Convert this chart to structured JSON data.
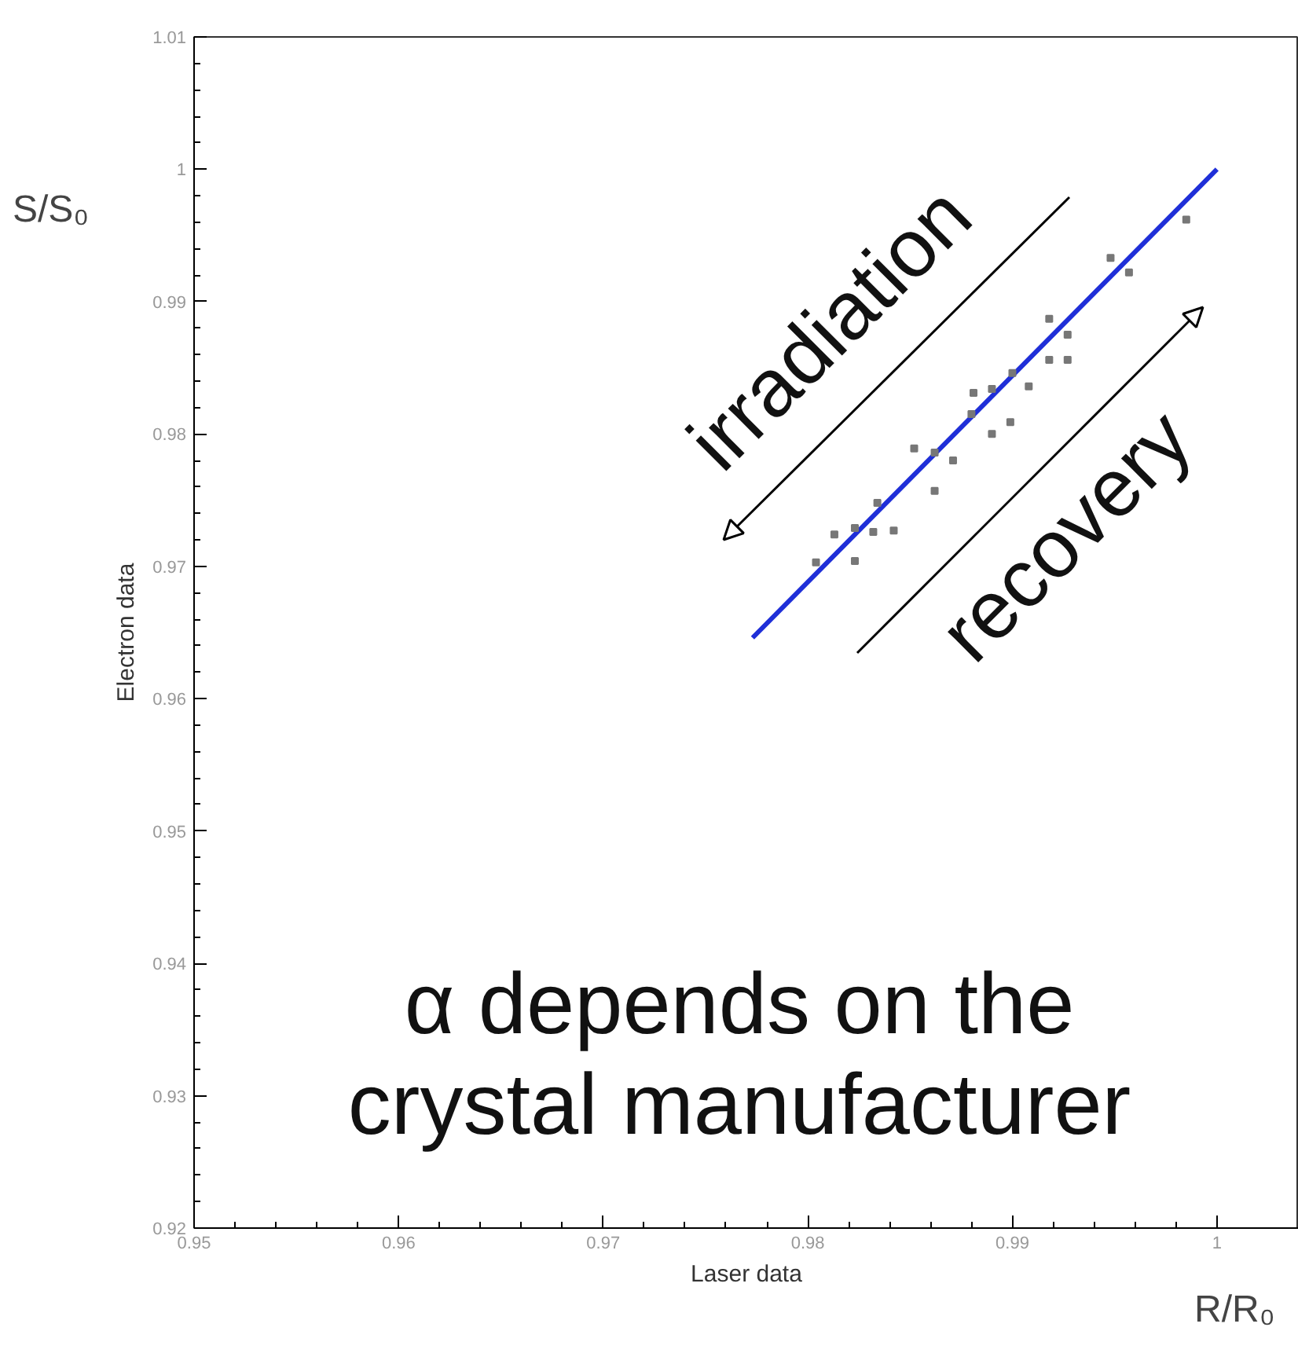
{
  "chart_data": {
    "type": "scatter",
    "xlabel": "Laser data",
    "ylabel": "Electron data",
    "xlim": [
      0.95,
      1.004
    ],
    "ylim": [
      0.92,
      1.01
    ],
    "xticks": [
      0.95,
      0.96,
      0.97,
      0.98,
      0.99,
      1
    ],
    "yticks": [
      0.92,
      0.93,
      0.94,
      0.95,
      0.96,
      0.97,
      0.98,
      0.99,
      1,
      1.01
    ],
    "grid": false,
    "series": [
      {
        "marker": "square",
        "color": "#777777",
        "x": [
          0.9804,
          0.9823,
          0.9813,
          0.9823,
          0.9832,
          0.9842,
          0.9834,
          0.9862,
          0.9852,
          0.9862,
          0.9871,
          0.988,
          0.9881,
          0.989,
          0.989,
          0.9899,
          0.9908,
          0.99,
          0.9918,
          0.9927,
          0.9918,
          0.9927,
          0.9948,
          0.9957,
          0.9985
        ],
        "values": [
          0.9703,
          0.9704,
          0.9724,
          0.9729,
          0.9726,
          0.9727,
          0.9748,
          0.9757,
          0.9789,
          0.9786,
          0.978,
          0.9815,
          0.9831,
          0.9834,
          0.98,
          0.9809,
          0.9836,
          0.9846,
          0.9856,
          0.9856,
          0.9887,
          0.9875,
          0.9933,
          0.9922,
          0.9962
        ]
      },
      {
        "type": "line",
        "color": "#1f2fd8",
        "x": [
          0.9773,
          1.0
        ],
        "values": [
          0.9646,
          1.0
        ]
      }
    ],
    "annotations": [
      "irradiation",
      "recovery",
      "α depends on the\ncrystal manufacturer",
      "S/S₀",
      "R/R₀"
    ]
  }
}
